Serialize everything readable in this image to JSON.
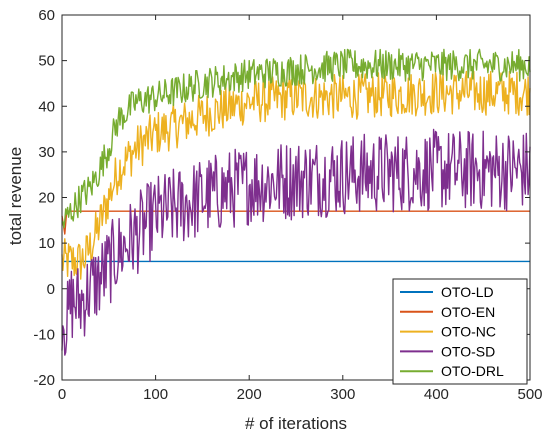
{
  "chart_data": {
    "type": "line",
    "title": "",
    "xlabel": "# of iterations",
    "ylabel": "total revenue",
    "xlim": [
      0,
      500
    ],
    "ylim": [
      -20,
      60
    ],
    "xticks": [
      "0",
      "100",
      "200",
      "300",
      "400",
      "500"
    ],
    "yticks": [
      "-20",
      "-10",
      "0",
      "10",
      "20",
      "30",
      "40",
      "50",
      "60"
    ],
    "grid": false,
    "legend_position": "bottom-right",
    "series": [
      {
        "name": "OTO-LD",
        "color": "#0072BD",
        "x": [
          0,
          500
        ],
        "y": [
          6,
          6
        ],
        "noise": 0
      },
      {
        "name": "OTO-EN",
        "color": "#D95319",
        "x": [
          0,
          3,
          5,
          500
        ],
        "y": [
          16,
          12,
          17,
          17
        ],
        "noise": 0
      },
      {
        "name": "OTO-NC",
        "color": "#EDB120",
        "x": [
          0,
          10,
          20,
          25,
          30,
          40,
          50,
          60,
          80,
          100,
          150,
          200,
          250,
          300,
          400,
          500
        ],
        "y": [
          6,
          6,
          6,
          7,
          9,
          14,
          20,
          26,
          31,
          34,
          38,
          41,
          42,
          42,
          43,
          43
        ],
        "noise": 5
      },
      {
        "name": "OTO-SD",
        "color": "#7E2F8E",
        "x": [
          0,
          5,
          10,
          20,
          30,
          40,
          50,
          60,
          80,
          100,
          150,
          200,
          300,
          400,
          500
        ],
        "y": [
          -5,
          -8,
          -3,
          -3,
          0,
          2,
          5,
          8,
          12,
          16,
          20,
          23,
          25,
          26,
          26
        ],
        "noise": 9
      },
      {
        "name": "OTO-DRL",
        "color": "#77AC30",
        "x": [
          0,
          10,
          20,
          30,
          40,
          50,
          60,
          80,
          100,
          150,
          200,
          250,
          300,
          400,
          500
        ],
        "y": [
          14,
          17,
          20,
          22,
          26,
          31,
          37,
          41,
          42,
          45,
          47,
          48,
          49,
          49,
          49
        ],
        "noise": 3.5
      }
    ]
  }
}
